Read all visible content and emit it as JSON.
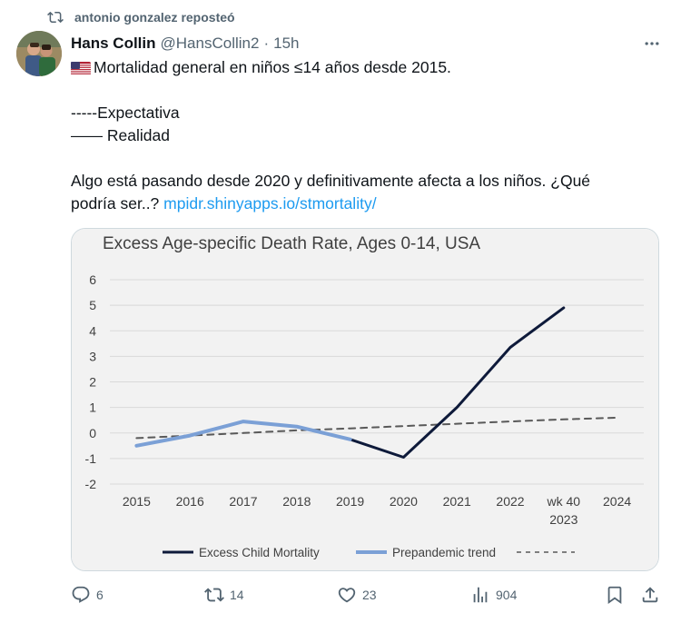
{
  "repost": {
    "text": "antonio gonzalez reposteó",
    "icon": "repost-icon"
  },
  "author": {
    "name": "Hans Collin",
    "handle": "@HansCollin2",
    "dot": "·",
    "time": "15h"
  },
  "tweet": {
    "line1": "Mortalidad general en niños ≤14 años desde 2015.",
    "line2": "-----Expectativa",
    "line3": "—— Realidad",
    "line4": "Algo está pasando desde 2020 y definitivamente afecta a los niños. ¿Qué",
    "line5_text": "podría ser..? ",
    "link": "mpidr.shinyapps.io/stmortality/"
  },
  "chart_data": {
    "type": "line",
    "title": "Excess Age-specific Death Rate, Ages 0-14, USA",
    "categories": [
      "2015",
      "2016",
      "2017",
      "2018",
      "2019",
      "2020",
      "2021",
      "2022",
      "wk 40 2023",
      "2024"
    ],
    "ylim": [
      -2,
      6
    ],
    "yticks": [
      "6",
      "5",
      "4",
      "3",
      "2",
      "1",
      "0",
      "-1",
      "-2"
    ],
    "grid": true,
    "legend_position": "bottom",
    "series": [
      {
        "name": "Excess Child Mortality",
        "color": "#0e1a3a",
        "values": [
          -0.5,
          -0.1,
          0.45,
          0.25,
          -0.25,
          -0.95,
          1.0,
          3.35,
          4.9,
          null
        ]
      },
      {
        "name": "Prepandemic trend",
        "color": "#7ba0d6",
        "values": [
          -0.5,
          -0.1,
          0.45,
          0.25,
          -0.25,
          null,
          null,
          null,
          null,
          null
        ]
      },
      {
        "name": "",
        "color": "#595959",
        "style": "dashed",
        "values": [
          -0.2,
          -0.1,
          0.0,
          0.1,
          0.18,
          0.27,
          0.36,
          0.45,
          0.53,
          0.6
        ]
      }
    ]
  },
  "actions": {
    "reply": {
      "count": "6",
      "icon": "reply-icon"
    },
    "retweet": {
      "count": "14",
      "icon": "retweet-icon"
    },
    "like": {
      "count": "23",
      "icon": "like-icon"
    },
    "views": {
      "count": "904",
      "icon": "views-icon"
    },
    "bookmark": {
      "icon": "bookmark-icon"
    },
    "share": {
      "icon": "share-icon"
    }
  },
  "colors": {
    "link": "#1d9bf0",
    "muted": "#536471",
    "text": "#0f1419"
  }
}
